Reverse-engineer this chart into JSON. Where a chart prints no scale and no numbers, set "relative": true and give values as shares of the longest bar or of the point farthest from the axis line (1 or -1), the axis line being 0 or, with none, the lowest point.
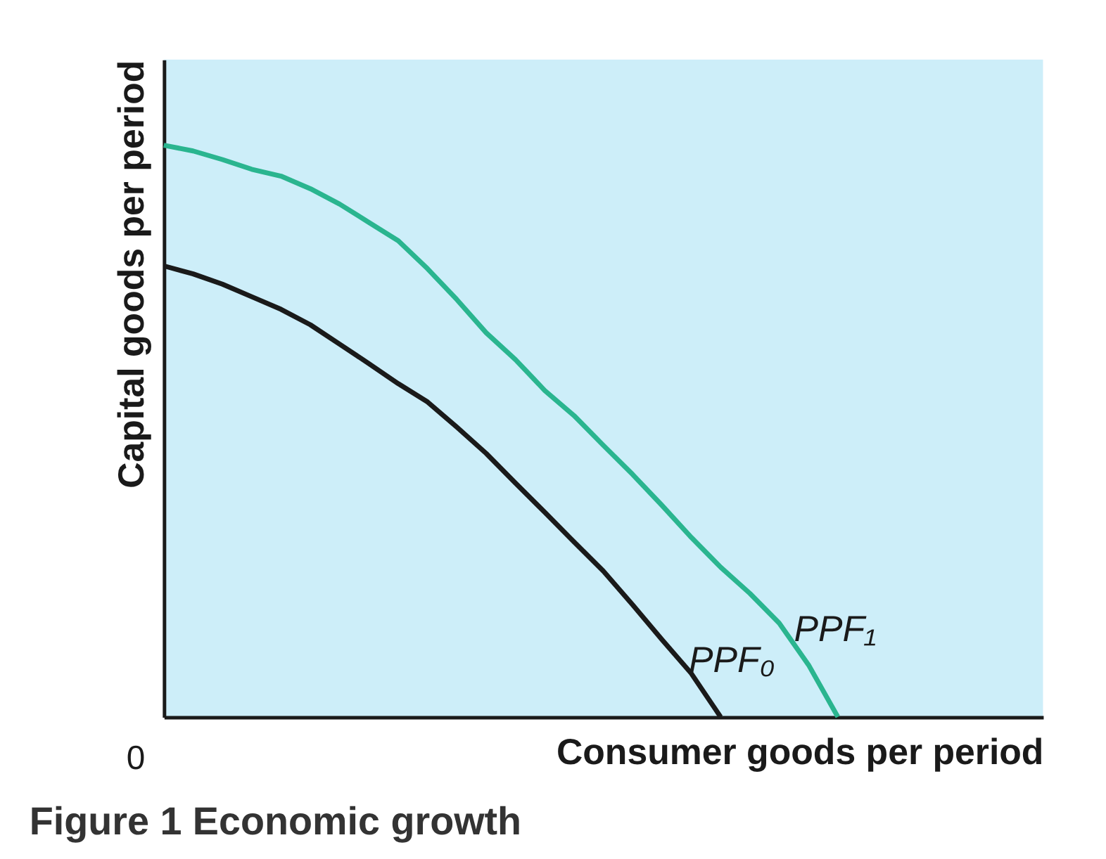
{
  "chart_data": {
    "type": "line",
    "title": "Figure 1   Economic growth",
    "xlabel": "Consumer goods per period",
    "ylabel": "Capital goods per period",
    "relative": true,
    "ylim": [
      0,
      1.15
    ],
    "grid": false,
    "legend": false,
    "marker": "none",
    "line_style": "solid",
    "annotations": [
      "0"
    ],
    "categories": [
      null,
      null,
      null,
      null,
      null,
      null,
      null,
      null,
      null,
      null,
      null,
      null,
      null,
      null,
      null,
      null,
      null,
      null,
      null,
      null,
      null,
      null,
      null,
      null,
      null,
      null,
      null,
      null,
      null,
      null,
      null
    ],
    "series": [
      {
        "name": "PPF₀",
        "color": "#1a1a1a",
        "values": [
          0.789,
          0.775,
          0.757,
          0.735,
          0.713,
          0.686,
          0.652,
          0.618,
          0.583,
          0.551,
          0.507,
          0.461,
          0.409,
          0.358,
          0.306,
          0.255,
          0.196,
          0.135,
          0.076,
          0,
          null,
          null,
          null,
          null,
          null,
          null,
          null,
          null,
          null,
          null,
          null
        ]
      },
      {
        "name": "PPF₁",
        "color": "#2ab58f",
        "values": [
          1,
          0.99,
          0.975,
          0.958,
          0.946,
          0.924,
          0.897,
          0.865,
          0.833,
          0.784,
          0.73,
          0.672,
          0.625,
          0.571,
          0.527,
          0.475,
          0.424,
          0.37,
          0.314,
          0.262,
          0.216,
          0.164,
          0.091,
          0,
          null,
          null,
          null,
          null,
          null,
          null,
          null
        ]
      }
    ]
  }
}
